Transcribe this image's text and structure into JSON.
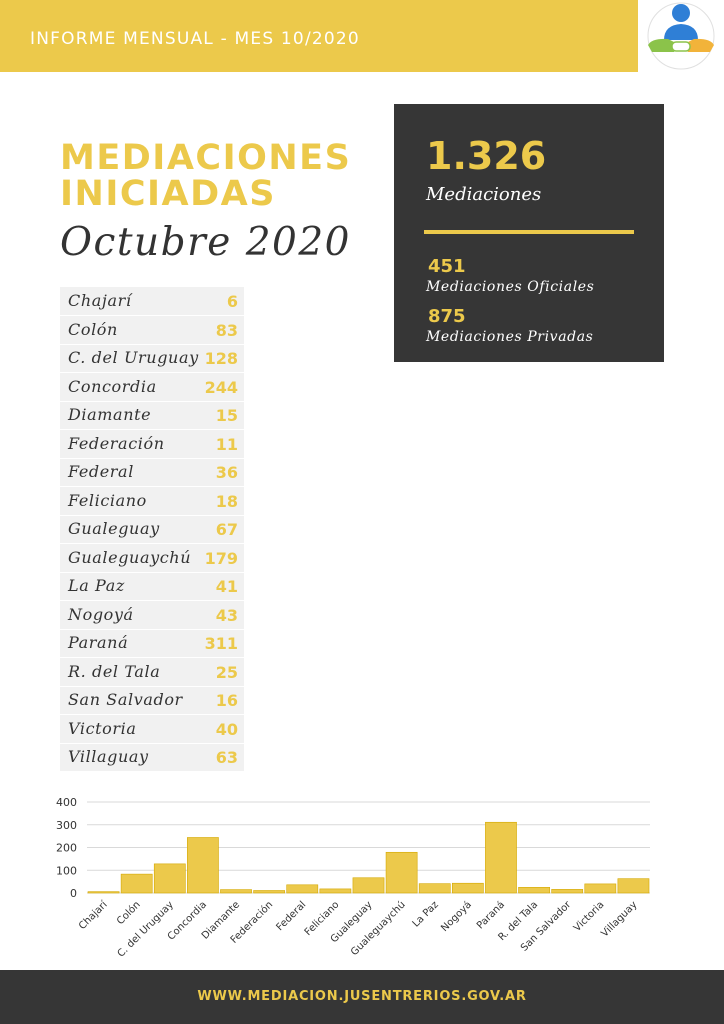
{
  "header": {
    "title": "INFORME MENSUAL - MES 10/2020"
  },
  "logo": {
    "icon": "mediation-logo-icon"
  },
  "title": {
    "line1": "MEDIACIONES",
    "line2": "INICIADAS",
    "subtitle": "Octubre 2020"
  },
  "stats": {
    "total": "1.326",
    "total_label": "Mediaciones",
    "oficiales": "451",
    "oficiales_label": "Mediaciones Oficiales",
    "privadas": "875",
    "privadas_label": "Mediaciones Privadas"
  },
  "table": {
    "rows": [
      {
        "name": "Chajarí",
        "value": "6"
      },
      {
        "name": "Colón",
        "value": "83"
      },
      {
        "name": "C. del Uruguay",
        "value": "128"
      },
      {
        "name": "Concordia",
        "value": "244"
      },
      {
        "name": "Diamante",
        "value": "15"
      },
      {
        "name": "Federación",
        "value": "11"
      },
      {
        "name": "Federal",
        "value": "36"
      },
      {
        "name": "Feliciano",
        "value": "18"
      },
      {
        "name": "Gualeguay",
        "value": "67"
      },
      {
        "name": "Gualeguaychú",
        "value": "179"
      },
      {
        "name": "La Paz",
        "value": "41"
      },
      {
        "name": "Nogoyá",
        "value": "43"
      },
      {
        "name": "Paraná",
        "value": "311"
      },
      {
        "name": "R. del Tala",
        "value": "25"
      },
      {
        "name": "San Salvador",
        "value": "16"
      },
      {
        "name": "Victoria",
        "value": "40"
      },
      {
        "name": "Villaguay",
        "value": "63"
      }
    ]
  },
  "chart_data": {
    "type": "bar",
    "categories": [
      "Chajarí",
      "Colón",
      "C. del Uruguay",
      "Concordia",
      "Diamante",
      "Federación",
      "Federal",
      "Feliciano",
      "Gualeguay",
      "Gualeguaychú",
      "La Paz",
      "Nogoyá",
      "Paraná",
      "R. del Tala",
      "San Salvador",
      "Victoria",
      "Villaguay"
    ],
    "values": [
      6,
      83,
      128,
      244,
      15,
      11,
      36,
      18,
      67,
      179,
      41,
      43,
      311,
      25,
      16,
      40,
      63
    ],
    "title": "",
    "xlabel": "",
    "ylabel": "",
    "ylim": [
      0,
      400
    ],
    "yticks": [
      0,
      100,
      200,
      300,
      400
    ],
    "grid": true,
    "bar_color": "#ECC94B",
    "bar_edge": "#D4A800"
  },
  "footer": {
    "url": "WWW.MEDIACION.JUSENTRERIOS.GOV.AR"
  },
  "colors": {
    "accent": "#ECC94B",
    "dark": "#363636",
    "text": "#333333",
    "table_bg": "#F1F1F1"
  }
}
